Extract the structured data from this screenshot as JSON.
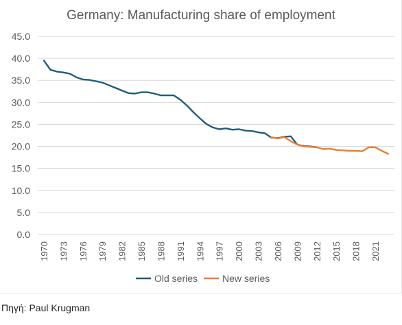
{
  "chart_data": {
    "type": "line",
    "title": "Germany: Manufacturing share of employment",
    "ylim": [
      0,
      45
    ],
    "y_ticks": [
      "0.0",
      "5.0",
      "10.0",
      "15.0",
      "20.0",
      "25.0",
      "30.0",
      "35.0",
      "40.0",
      "45.0"
    ],
    "x_ticks": [
      "1970",
      "1973",
      "1976",
      "1979",
      "1982",
      "1985",
      "1988",
      "1991",
      "1994",
      "1997",
      "2000",
      "2003",
      "2006",
      "2009",
      "2012",
      "2015",
      "2018",
      "2021"
    ],
    "legend_position": "bottom",
    "series": [
      {
        "name": "Old series",
        "color": "#1f5c7a",
        "points": [
          [
            1970,
            39.5
          ],
          [
            1971,
            37.4
          ],
          [
            1972,
            37.0
          ],
          [
            1973,
            36.8
          ],
          [
            1974,
            36.5
          ],
          [
            1975,
            35.7
          ],
          [
            1976,
            35.2
          ],
          [
            1977,
            35.1
          ],
          [
            1978,
            34.8
          ],
          [
            1979,
            34.5
          ],
          [
            1980,
            33.9
          ],
          [
            1981,
            33.3
          ],
          [
            1982,
            32.7
          ],
          [
            1983,
            32.1
          ],
          [
            1984,
            32.0
          ],
          [
            1985,
            32.3
          ],
          [
            1986,
            32.3
          ],
          [
            1987,
            32.0
          ],
          [
            1988,
            31.6
          ],
          [
            1989,
            31.6
          ],
          [
            1990,
            31.6
          ],
          [
            1991,
            30.6
          ],
          [
            1992,
            29.3
          ],
          [
            1993,
            27.8
          ],
          [
            1994,
            26.4
          ],
          [
            1995,
            25.1
          ],
          [
            1996,
            24.3
          ],
          [
            1997,
            23.9
          ],
          [
            1998,
            24.1
          ],
          [
            1999,
            23.8
          ],
          [
            2000,
            23.9
          ],
          [
            2001,
            23.6
          ],
          [
            2002,
            23.5
          ],
          [
            2003,
            23.2
          ],
          [
            2004,
            23.0
          ],
          [
            2005,
            22.0
          ],
          [
            2006,
            21.9
          ],
          [
            2007,
            22.2
          ],
          [
            2008,
            22.3
          ],
          [
            2009,
            20.4
          ],
          [
            2010,
            20.1
          ],
          [
            2011,
            20.0
          ],
          [
            2012,
            19.8
          ]
        ]
      },
      {
        "name": "New series",
        "color": "#ed7d31",
        "points": [
          [
            2005,
            22.1
          ],
          [
            2006,
            21.8
          ],
          [
            2007,
            22.1
          ],
          [
            2008,
            21.2
          ],
          [
            2009,
            20.4
          ],
          [
            2010,
            20.0
          ],
          [
            2011,
            19.9
          ],
          [
            2012,
            19.8
          ],
          [
            2013,
            19.4
          ],
          [
            2014,
            19.5
          ],
          [
            2015,
            19.2
          ],
          [
            2016,
            19.1
          ],
          [
            2017,
            19.0
          ],
          [
            2018,
            19.0
          ],
          [
            2019,
            18.9
          ],
          [
            2020,
            19.8
          ],
          [
            2021,
            19.8
          ],
          [
            2022,
            19.0
          ],
          [
            2023,
            18.3
          ]
        ]
      }
    ]
  },
  "source_note": "Πηγή: Paul Krugman"
}
